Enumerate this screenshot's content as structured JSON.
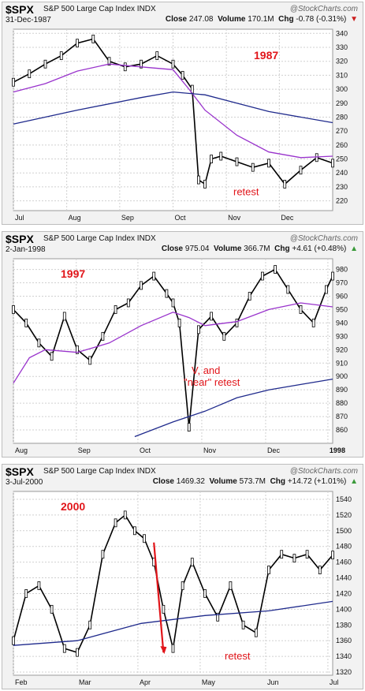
{
  "brand": "@StockCharts.com",
  "colors": {
    "ma50": "#9933cc",
    "ma200": "#1f2a8c",
    "price": "#000000",
    "annotation": "#e1151a",
    "up": "#3a9a3a",
    "down": "#cc1f1f"
  },
  "chart_data": [
    {
      "type": "ohlc",
      "symbol": "$SPX",
      "name": "S&P 500 Large Cap Index",
      "exchange": "INDX",
      "date": "31-Dec-1987",
      "close": "247.08",
      "volume": "170.1M",
      "chg": "-0.78 (-0.31%)",
      "chg_dir": "down",
      "year_label": "1987",
      "note": "retest",
      "ylim": [
        213,
        343
      ],
      "yticks": [
        220,
        230,
        240,
        250,
        260,
        270,
        280,
        290,
        300,
        310,
        320,
        330,
        340
      ],
      "months": [
        "Jul",
        "Aug",
        "Sep",
        "Oct",
        "Nov",
        "Dec"
      ],
      "month_pos": [
        0,
        0.167,
        0.333,
        0.5,
        0.667,
        0.833
      ],
      "series": [
        {
          "name": "price",
          "x": [
            0,
            0.05,
            0.1,
            0.15,
            0.2,
            0.25,
            0.3,
            0.35,
            0.4,
            0.45,
            0.5,
            0.53,
            0.56,
            0.58,
            0.6,
            0.62,
            0.65,
            0.7,
            0.75,
            0.8,
            0.85,
            0.9,
            0.95,
            1.0
          ],
          "values": [
            305,
            311,
            318,
            324,
            333,
            336,
            320,
            316,
            318,
            324,
            318,
            310,
            300,
            235,
            232,
            250,
            252,
            248,
            244,
            247,
            232,
            242,
            251,
            247
          ]
        },
        {
          "name": "ma50",
          "x": [
            0,
            0.1,
            0.2,
            0.3,
            0.4,
            0.5,
            0.55,
            0.6,
            0.7,
            0.8,
            0.9,
            1.0
          ],
          "values": [
            298,
            304,
            313,
            318,
            316,
            314,
            300,
            285,
            267,
            255,
            251,
            252
          ]
        },
        {
          "name": "ma200",
          "x": [
            0,
            0.2,
            0.4,
            0.5,
            0.6,
            0.8,
            1.0
          ],
          "values": [
            275,
            285,
            294,
            298,
            296,
            284,
            276
          ]
        }
      ]
    },
    {
      "type": "ohlc",
      "symbol": "$SPX",
      "name": "S&P 500 Large Cap Index",
      "exchange": "INDX",
      "date": "2-Jan-1998",
      "close": "975.04",
      "volume": "366.7M",
      "chg": "+4.61 (+0.48%)",
      "chg_dir": "up",
      "year_label": "1997",
      "note_lines": [
        "V, and",
        "\"near\" retest"
      ],
      "ylim": [
        850,
        988
      ],
      "yticks": [
        860,
        870,
        880,
        890,
        900,
        910,
        920,
        930,
        940,
        950,
        960,
        970,
        980
      ],
      "months": [
        "Aug",
        "Sep",
        "Oct",
        "Nov",
        "Dec",
        "1998"
      ],
      "month_pos": [
        0,
        0.197,
        0.39,
        0.59,
        0.79,
        0.985
      ],
      "series": [
        {
          "name": "price",
          "x": [
            0,
            0.04,
            0.08,
            0.12,
            0.16,
            0.2,
            0.24,
            0.28,
            0.32,
            0.36,
            0.4,
            0.44,
            0.48,
            0.5,
            0.52,
            0.55,
            0.58,
            0.62,
            0.66,
            0.7,
            0.74,
            0.78,
            0.82,
            0.86,
            0.9,
            0.94,
            0.98,
            1.0
          ],
          "values": [
            950,
            940,
            925,
            915,
            945,
            920,
            912,
            930,
            950,
            955,
            968,
            975,
            962,
            955,
            940,
            862,
            935,
            945,
            930,
            940,
            960,
            975,
            980,
            965,
            950,
            940,
            965,
            975
          ]
        },
        {
          "name": "ma50",
          "x": [
            0,
            0.05,
            0.1,
            0.2,
            0.3,
            0.4,
            0.5,
            0.55,
            0.6,
            0.7,
            0.8,
            0.9,
            1.0
          ],
          "values": [
            895,
            914,
            920,
            918,
            925,
            938,
            948,
            944,
            938,
            941,
            950,
            955,
            952
          ]
        },
        {
          "name": "ma200",
          "x": [
            0.38,
            0.5,
            0.6,
            0.7,
            0.8,
            0.9,
            1.0
          ],
          "values": [
            855,
            866,
            874,
            884,
            890,
            894,
            898
          ]
        }
      ]
    },
    {
      "type": "ohlc",
      "symbol": "$SPX",
      "name": "S&P 500 Large Cap Index",
      "exchange": "INDX",
      "date": "3-Jul-2000",
      "close": "1469.32",
      "volume": "573.7M",
      "chg": "+14.72 (+1.01%)",
      "chg_dir": "up",
      "year_label": "2000",
      "note": "retest",
      "ylim": [
        1316,
        1550
      ],
      "yticks": [
        1320,
        1340,
        1360,
        1380,
        1400,
        1420,
        1440,
        1460,
        1480,
        1500,
        1520,
        1540
      ],
      "months": [
        "Feb",
        "Mar",
        "Apr",
        "May",
        "Jun",
        "Jul"
      ],
      "month_pos": [
        0,
        0.2,
        0.39,
        0.585,
        0.79,
        0.985
      ],
      "series": [
        {
          "name": "price",
          "x": [
            0,
            0.04,
            0.08,
            0.12,
            0.16,
            0.2,
            0.24,
            0.28,
            0.32,
            0.35,
            0.38,
            0.41,
            0.44,
            0.47,
            0.5,
            0.53,
            0.56,
            0.6,
            0.64,
            0.68,
            0.72,
            0.76,
            0.8,
            0.84,
            0.88,
            0.92,
            0.96,
            1.0
          ],
          "values": [
            1360,
            1420,
            1430,
            1400,
            1350,
            1345,
            1380,
            1470,
            1510,
            1520,
            1500,
            1490,
            1460,
            1400,
            1350,
            1430,
            1460,
            1420,
            1390,
            1430,
            1380,
            1370,
            1450,
            1470,
            1465,
            1470,
            1450,
            1469
          ]
        },
        {
          "name": "ma200",
          "x": [
            0,
            0.2,
            0.4,
            0.6,
            0.8,
            1.0
          ],
          "values": [
            1354,
            1360,
            1382,
            1392,
            1398,
            1410
          ]
        }
      ]
    }
  ]
}
